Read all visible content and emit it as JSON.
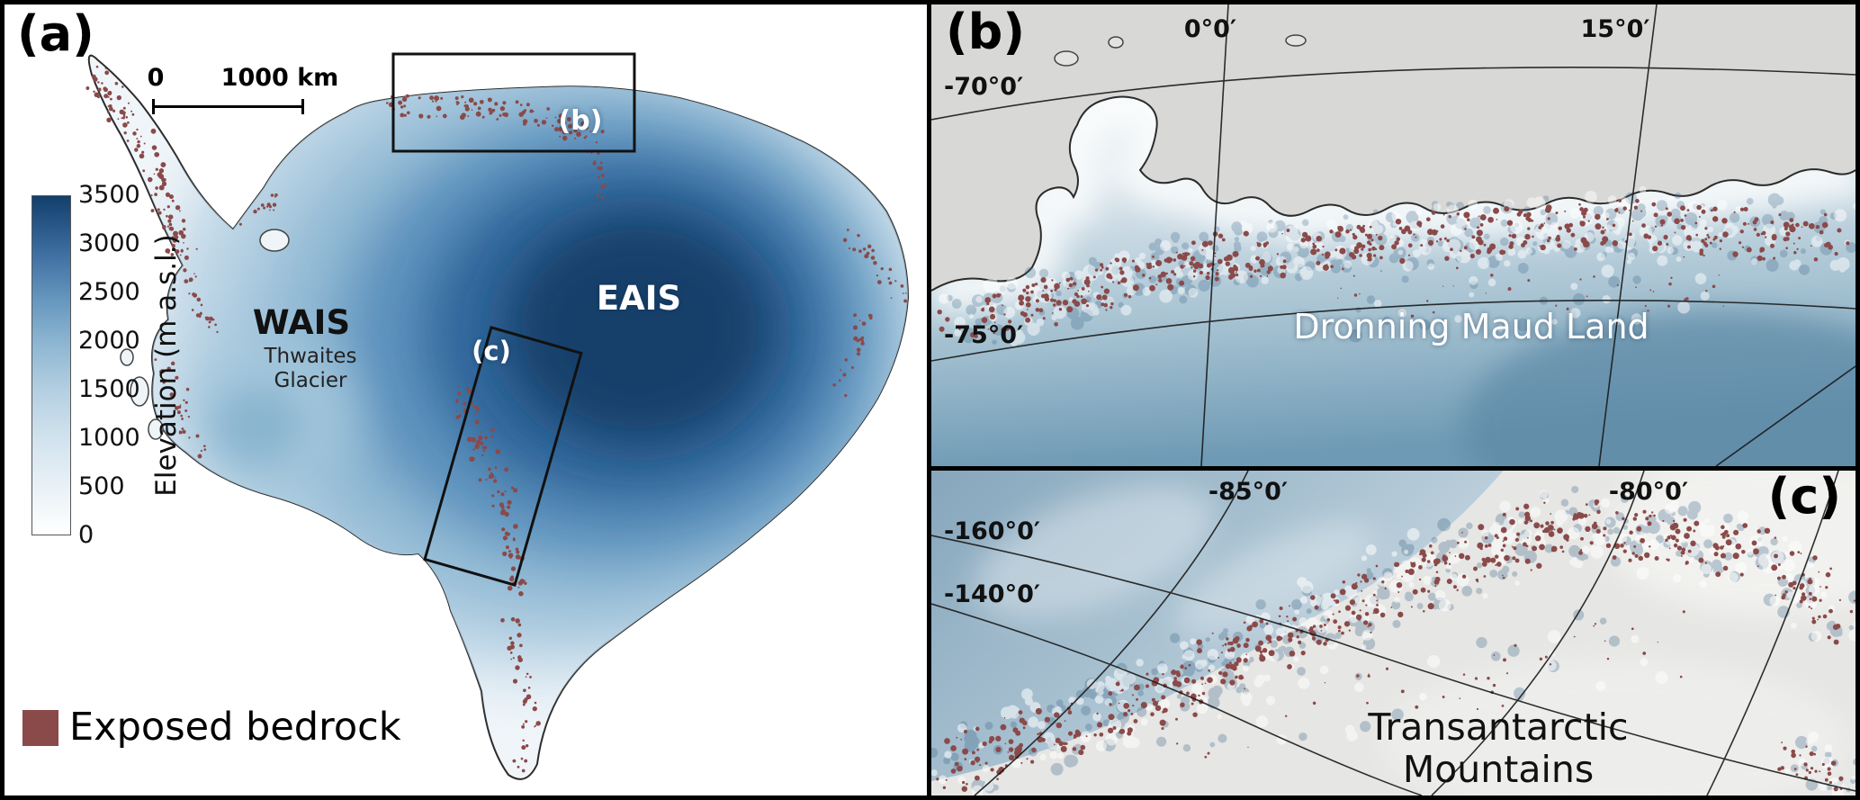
{
  "colors": {
    "bedrock": "#8a4a49",
    "elevation_high": "#123f6b",
    "elevation_low": "#ffffff",
    "ice_blue": "#6f9ab5",
    "ocean_gray": "#d8d8d6"
  },
  "panel_a": {
    "label": "(a)",
    "scalebar": {
      "zero": "0",
      "distance": "1000 km"
    },
    "colorbar": {
      "title": "Elevation (m a.s.l.)",
      "ticks": [
        "3500",
        "3000",
        "2500",
        "2000",
        "1500",
        "1000",
        "500",
        "0"
      ]
    },
    "map_labels": {
      "wais": "WAIS",
      "eais": "EAIS",
      "thwaites_line1": "Thwaites",
      "thwaites_line2": "Glacier",
      "inset_b": "(b)",
      "inset_c": "(c)"
    },
    "legend": {
      "label": "Exposed bedrock"
    }
  },
  "panel_b": {
    "label": "(b)",
    "lon_left": "0°0′",
    "lon_right": "15°0′",
    "lat_top": "-70°0′",
    "lat_bottom": "-75°0′",
    "place": "Dronning Maud Land"
  },
  "panel_c": {
    "label": "(c)",
    "lat_left": "-85°0′",
    "lat_right": "-80°0′",
    "lon_top": "-160°0′",
    "lon_bottom": "-140°0′",
    "place_line1": "Transantarctic",
    "place_line2": "Mountains"
  }
}
